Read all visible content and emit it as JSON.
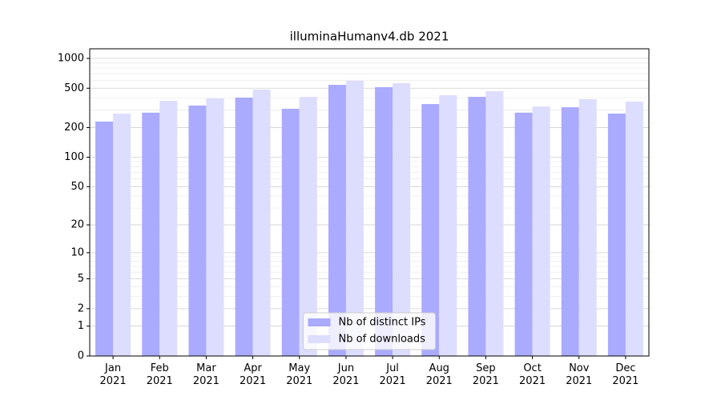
{
  "chart_data": {
    "type": "bar",
    "title": "illuminaHumanv4.db 2021",
    "categories": [
      "Jan\n2021",
      "Feb\n2021",
      "Mar\n2021",
      "Apr\n2021",
      "May\n2021",
      "Jun\n2021",
      "Jul\n2021",
      "Aug\n2021",
      "Sep\n2021",
      "Oct\n2021",
      "Nov\n2021",
      "Dec\n2021"
    ],
    "series": [
      {
        "name": "Nb of distinct IPs",
        "color": "#aaaaff",
        "values": [
          230,
          283,
          334,
          402,
          310,
          541,
          512,
          346,
          409,
          283,
          321,
          277
        ]
      },
      {
        "name": "Nb of downloads",
        "color": "#ddddff",
        "values": [
          277,
          373,
          394,
          484,
          409,
          594,
          562,
          425,
          467,
          327,
          387,
          366
        ]
      }
    ],
    "yscale": "log1p",
    "ylim": [
      0,
      1250
    ],
    "yticks": [
      0,
      1,
      2,
      5,
      10,
      20,
      50,
      100,
      200,
      500,
      1000
    ],
    "yminorticks": [
      3,
      4,
      6,
      7,
      8,
      9,
      30,
      40,
      60,
      70,
      80,
      90,
      300,
      400,
      600,
      700,
      800,
      900
    ],
    "grid": true,
    "legend": "lower center"
  }
}
